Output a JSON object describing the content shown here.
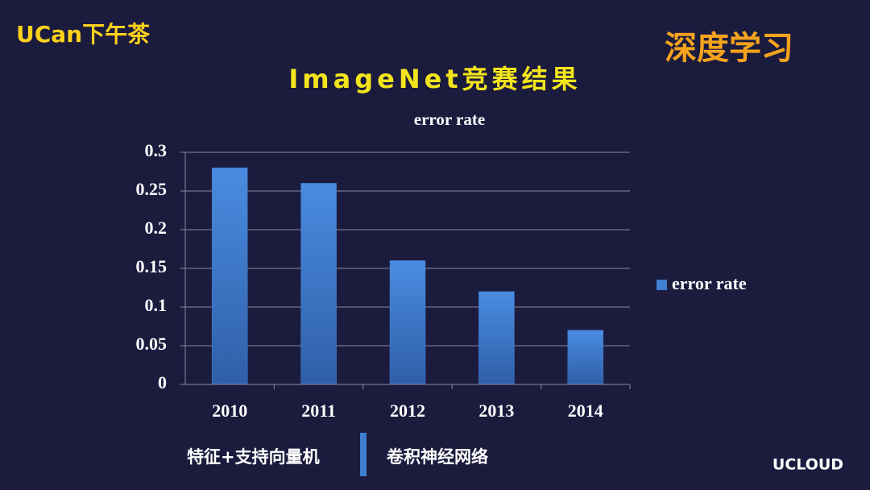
{
  "logo": "UCan下午茶",
  "heading": "深度学习",
  "slide_title": "ImageNet竞赛结果",
  "chart_data": {
    "type": "bar",
    "title": "error rate",
    "categories": [
      "2010",
      "2011",
      "2012",
      "2013",
      "2014"
    ],
    "series": [
      {
        "name": "error rate",
        "color": "#3f7fd0",
        "values": [
          0.28,
          0.26,
          0.16,
          0.12,
          0.07
        ]
      }
    ],
    "ylim": [
      0,
      0.3
    ],
    "yticks": [
      0,
      0.05,
      0.1,
      0.15,
      0.2,
      0.25,
      0.3
    ],
    "grid": true,
    "legend": "right"
  },
  "annotations": [
    "特征+支持向量机",
    "卷积神经网络"
  ],
  "footer": "UCLOUD"
}
